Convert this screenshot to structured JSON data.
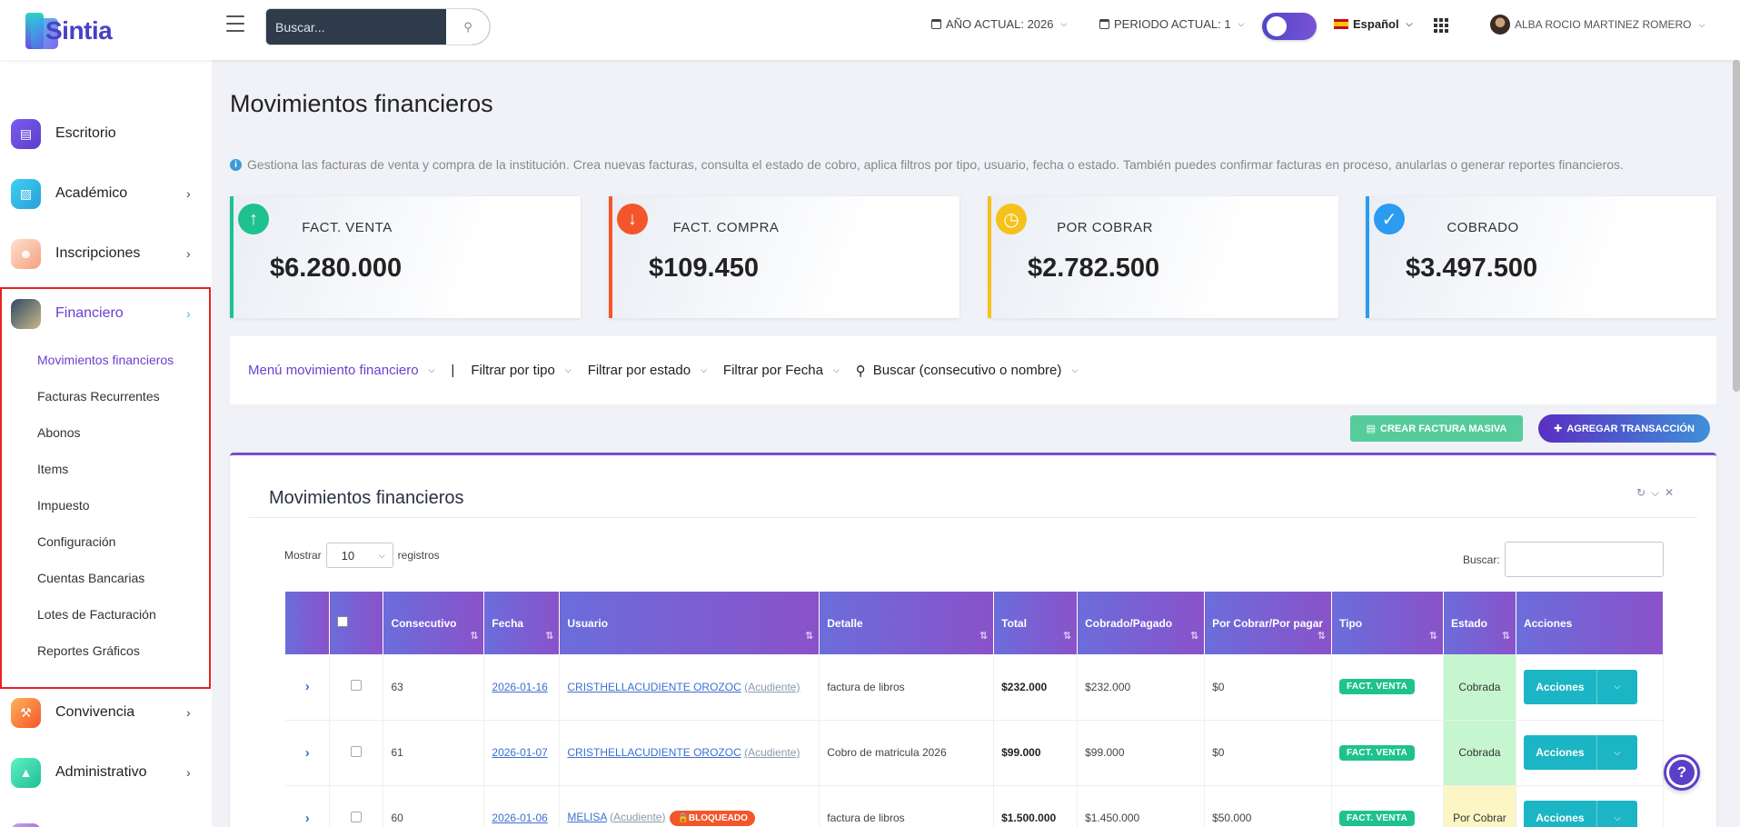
{
  "app": {
    "logo": "Sintia"
  },
  "header": {
    "search_placeholder": "Buscar...",
    "year": "AÑO ACTUAL: 2026",
    "period": "PERIODO ACTUAL: 1",
    "language": "Español",
    "user": "ALBA ROCIO MARTINEZ ROMERO"
  },
  "sidebar": {
    "items": [
      {
        "label": "Escritorio",
        "icon": "desk-icon",
        "color": "#6b4ce6"
      },
      {
        "label": "Académico",
        "icon": "book-icon",
        "color": "#2cc3e6"
      },
      {
        "label": "Inscripciones",
        "icon": "user-add-icon",
        "color": "#f7a07a"
      },
      {
        "label": "Financiero",
        "icon": "finance-icon",
        "color": "#5a6f88"
      },
      {
        "label": "Convivencia",
        "icon": "gavel-icon",
        "color": "#f26b3a"
      },
      {
        "label": "Administrativo",
        "icon": "shirt-icon",
        "color": "#2bd4a7"
      }
    ],
    "financiero_sub": [
      "Movimientos financieros",
      "Facturas Recurrentes",
      "Abonos",
      "Items",
      "Impuesto",
      "Configuración",
      "Cuentas Bancarias",
      "Lotes de Facturación",
      "Reportes Gráficos"
    ]
  },
  "main": {
    "title": "Movimientos financieros",
    "info": "Gestiona las facturas de venta y compra de la institución. Crea nuevas facturas, consulta el estado de cobro, aplica filtros por tipo, usuario, fecha o estado. También puedes confirmar facturas en proceso, anularlas o generar reportes financieros.",
    "cards": [
      {
        "label": "FACT. VENTA",
        "value": "$6.280.000",
        "color": "#1fc28e",
        "icon": "arrow-up-icon"
      },
      {
        "label": "FACT. COMPRA",
        "value": "$109.450",
        "color": "#f2562a",
        "icon": "arrow-down-icon"
      },
      {
        "label": "POR COBRAR",
        "value": "$2.782.500",
        "color": "#f5c21b",
        "icon": "clock-icon"
      },
      {
        "label": "COBRADO",
        "value": "$3.497.500",
        "color": "#2b9cf0",
        "icon": "check-icon"
      }
    ],
    "filters": {
      "menu": "Menú movimiento financiero",
      "separator": "|",
      "tipo": "Filtrar por tipo",
      "estado": "Filtrar por estado",
      "fecha": "Filtrar por Fecha",
      "buscar": "Buscar (consecutivo o nombre)"
    },
    "buttons": {
      "masiva": "CREAR FACTURA MASIVA",
      "agregar": "AGREGAR TRANSACCIÓN"
    },
    "panel": {
      "title": "Movimientos financieros",
      "show": "Mostrar",
      "length": "10",
      "records": "registros",
      "search_label": "Buscar:"
    },
    "table": {
      "headers": [
        "Consecutivo",
        "Fecha",
        "Usuario",
        "Detalle",
        "Total",
        "Cobrado/Pagado",
        "Por Cobrar/Por pagar",
        "Tipo",
        "Estado",
        "Acciones"
      ],
      "rows": [
        {
          "consecutivo": "63",
          "fecha": "2026-01-16",
          "usuario": "CRISTHELLACUDIENTE OROZOC",
          "rol": "(Acudiente)",
          "detalle": "factura de libros",
          "total": "$232.000",
          "cobrado": "$232.000",
          "por_cobrar": "$0",
          "tipo": "FACT. VENTA",
          "estado": "Cobrada",
          "acciones": "Acciones"
        },
        {
          "consecutivo": "61",
          "fecha": "2026-01-07",
          "usuario": "CRISTHELLACUDIENTE OROZOC",
          "rol": "(Acudiente)",
          "detalle": "Cobro de matricula 2026",
          "total": "$99.000",
          "cobrado": "$99.000",
          "por_cobrar": "$0",
          "tipo": "FACT. VENTA",
          "estado": "Cobrada",
          "acciones": "Acciones"
        },
        {
          "consecutivo": "60",
          "fecha": "2026-01-06",
          "usuario": "MELISA",
          "rol": "(Acudiente)",
          "bloqueado": "BLOQUEADO",
          "detalle": "factura de libros",
          "total": "$1.500.000",
          "cobrado": "$1.450.000",
          "por_cobrar": "$50.000",
          "tipo": "FACT. VENTA",
          "estado": "Por Cobrar",
          "acciones": "Acciones"
        }
      ]
    }
  }
}
